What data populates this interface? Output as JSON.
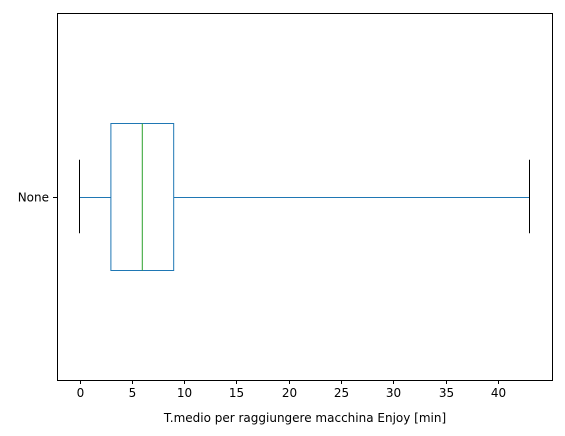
{
  "chart_data": {
    "type": "boxplot",
    "orientation": "horizontal",
    "title": "",
    "xlabel": "T.medio per raggiungere macchina Enjoy [min]",
    "ylabel": "",
    "xlim": [
      -2.15,
      45.15
    ],
    "xticks": [
      0,
      5,
      10,
      15,
      20,
      25,
      30,
      35,
      40
    ],
    "xtick_labels": [
      "0",
      "5",
      "10",
      "15",
      "20",
      "25",
      "30",
      "35",
      "40"
    ],
    "categories": [
      "None"
    ],
    "boxes": [
      {
        "label": "None",
        "whisker_low": 0,
        "q1": 3,
        "median": 6,
        "q3": 9,
        "whisker_high": 43
      }
    ],
    "grid": false,
    "colors": {
      "box": "#1f77b4",
      "median": "#2ca02c",
      "caps": "#000000",
      "axes": "#000000"
    }
  }
}
